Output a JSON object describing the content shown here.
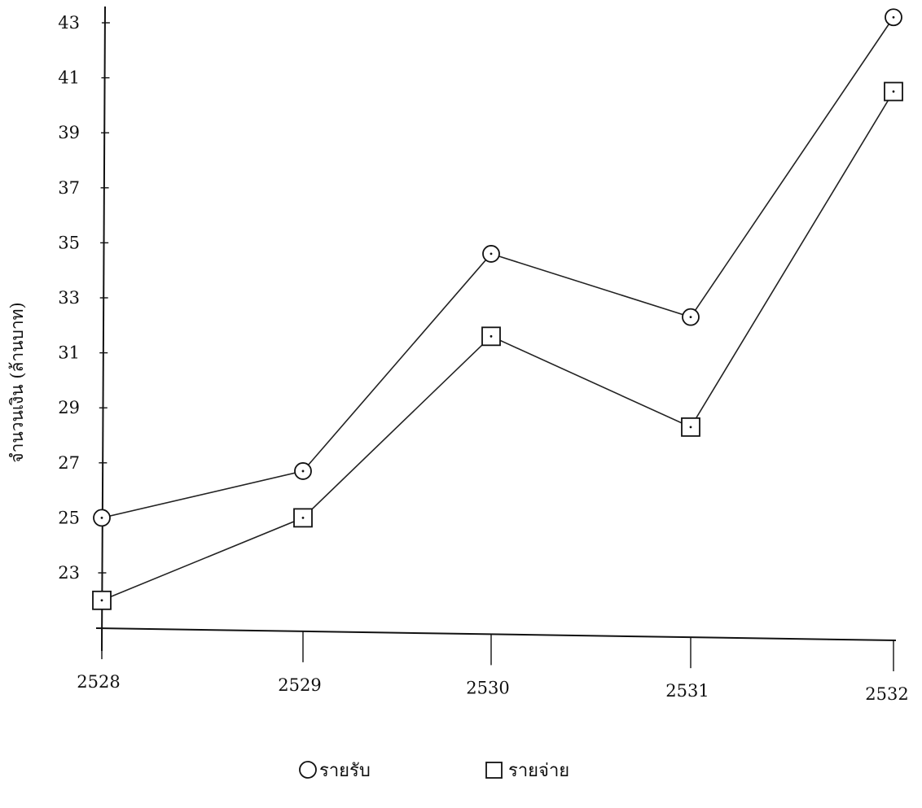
{
  "chart_data": {
    "type": "line",
    "title": "",
    "xlabel": "",
    "ylabel": "จำนวนเงิน (ล้านบาท)",
    "categories": [
      "2528",
      "2529",
      "2530",
      "2531",
      "2532"
    ],
    "yticks": [
      23,
      25,
      27,
      29,
      31,
      33,
      35,
      37,
      39,
      41,
      43
    ],
    "ylim": [
      21,
      44.3
    ],
    "grid": false,
    "legend_position": "bottom-center",
    "series": [
      {
        "name": "รายรับ",
        "marker": "circle",
        "values": [
          25.0,
          26.7,
          34.6,
          32.3,
          43.2
        ]
      },
      {
        "name": "รายจ่าย",
        "marker": "square",
        "values": [
          22.0,
          25.0,
          31.6,
          28.3,
          40.5
        ]
      }
    ]
  }
}
